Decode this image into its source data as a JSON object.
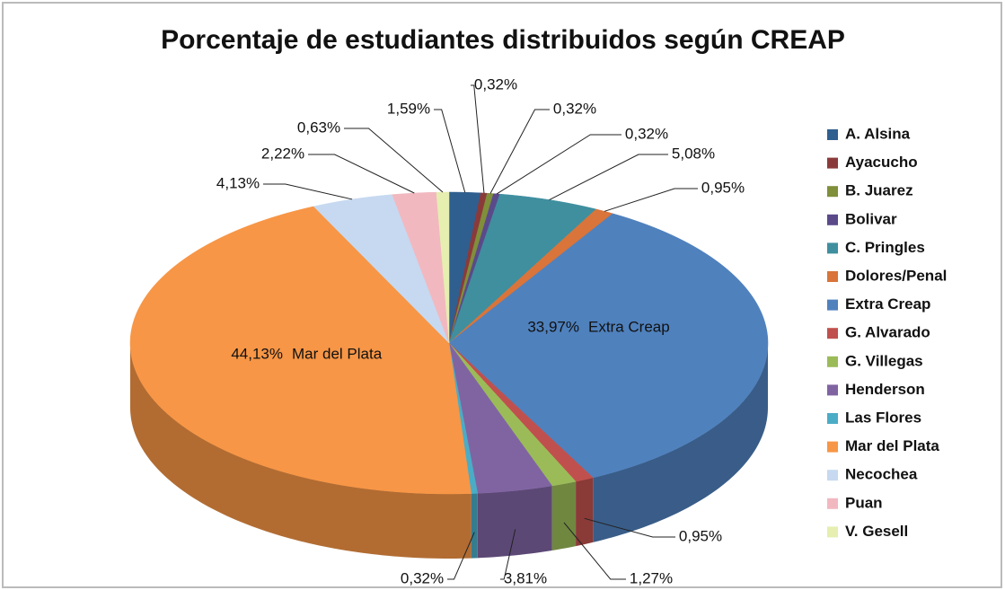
{
  "chart_data": {
    "type": "pie",
    "title": "Porcentaje de estudiantes distribuidos según CREAP",
    "categories": [
      "A. Alsina",
      "Ayacucho",
      "B. Juarez",
      "Bolivar",
      "C. Pringles",
      "Dolores/Penal",
      "Extra Creap",
      "G. Alvarado",
      "G. Villegas",
      "Henderson",
      "Las Flores",
      "Mar del Plata",
      "Necochea",
      "Puan",
      "V. Gesell"
    ],
    "values": [
      1.59,
      0.32,
      0.32,
      0.32,
      5.08,
      0.95,
      33.97,
      0.95,
      1.27,
      3.81,
      0.32,
      44.13,
      4.13,
      2.22,
      0.63
    ],
    "value_labels": [
      "1,59%",
      "0,32%",
      "0,32%",
      "0,32%",
      "5,08%",
      "0,95%",
      "33,97%",
      "0,95%",
      "1,27%",
      "3,81%",
      "0,32%",
      "44,13%",
      "4,13%",
      "2,22%",
      "0,63%"
    ],
    "colors": [
      "#2f5f8f",
      "#8b3a3a",
      "#7f8f3a",
      "#5a4a8a",
      "#3f8f9f",
      "#d9743a",
      "#4f81bd",
      "#c0504d",
      "#9bbb59",
      "#8064a2",
      "#4bacc6",
      "#f79646",
      "#c6d9f0",
      "#f2b8c0",
      "#e6eeb0"
    ],
    "legend": "right"
  }
}
